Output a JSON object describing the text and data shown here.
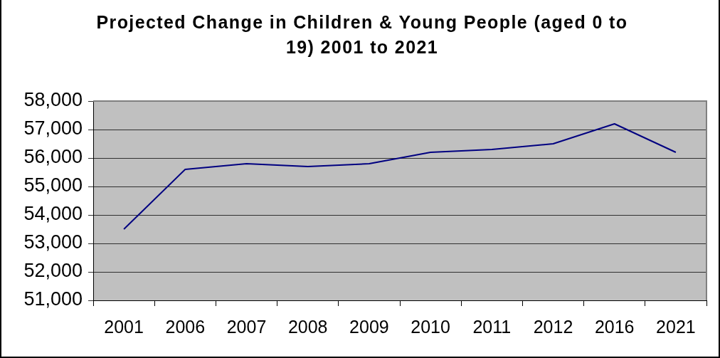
{
  "chart_data": {
    "type": "line",
    "title": "Projected Change in Children & Young People (aged 0 to 19) 2001 to 2021",
    "categories": [
      "2001",
      "2006",
      "2007",
      "2008",
      "2009",
      "2010",
      "2011",
      "2012",
      "2016",
      "2021"
    ],
    "values": [
      53500,
      55600,
      55800,
      55700,
      55800,
      56200,
      56300,
      56500,
      57200,
      56200
    ],
    "color": "#000080",
    "ylim": [
      51000,
      58000
    ],
    "yticks": [
      {
        "value": 51000,
        "label": "51,000"
      },
      {
        "value": 52000,
        "label": "52,000"
      },
      {
        "value": 53000,
        "label": "53,000"
      },
      {
        "value": 54000,
        "label": "54,000"
      },
      {
        "value": 55000,
        "label": "55,000"
      },
      {
        "value": 56000,
        "label": "56,000"
      },
      {
        "value": 57000,
        "label": "57,000"
      },
      {
        "value": 58000,
        "label": "58,000"
      }
    ],
    "grid": "y",
    "legend": false,
    "marker": "none",
    "line_style": "solid"
  }
}
